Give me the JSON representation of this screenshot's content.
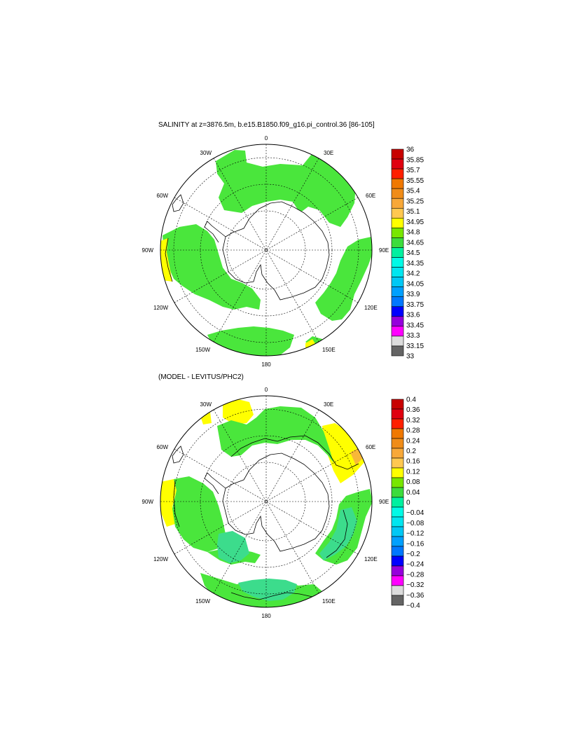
{
  "panels": [
    {
      "id": "salinity",
      "title": "SALINITY at z=3876.5m, b.e15.B1850.f09_g16.pi_control.36 [86-105]",
      "lon_labels": [
        "0",
        "30E",
        "60E",
        "90E",
        "120E",
        "150E",
        "180",
        "150W",
        "120W",
        "90W",
        "60W",
        "30W"
      ],
      "colorbar": {
        "labels": [
          "36",
          "35.85",
          "35.7",
          "35.55",
          "35.4",
          "35.25",
          "35.1",
          "34.95",
          "34.8",
          "34.65",
          "34.5",
          "34.35",
          "34.2",
          "34.05",
          "33.9",
          "33.75",
          "33.6",
          "33.45",
          "33.3",
          "33.15",
          "33"
        ],
        "colors": [
          "#c80000",
          "#e00010",
          "#ff2000",
          "#f07800",
          "#f08c18",
          "#f8a838",
          "#ffc850",
          "#ffff00",
          "#78e600",
          "#3cdc3c",
          "#00f0a0",
          "#00fae6",
          "#00e6f0",
          "#00c8f5",
          "#00a0ff",
          "#0078ff",
          "#0000ff",
          "#9600dc",
          "#ff00ff",
          "#dcdcdc",
          "#646464"
        ]
      }
    },
    {
      "id": "difference",
      "title": "(MODEL - LEVITUS/PHC2)",
      "lon_labels": [
        "0",
        "30E",
        "60E",
        "90E",
        "120E",
        "150E",
        "180",
        "150W",
        "120W",
        "90W",
        "60W",
        "30W"
      ],
      "colorbar": {
        "labels": [
          "0.4",
          "0.36",
          "0.32",
          "0.28",
          "0.24",
          "0.2",
          "0.16",
          "0.12",
          "0.08",
          "0.04",
          "0",
          "−0.04",
          "−0.08",
          "−0.12",
          "−0.16",
          "−0.2",
          "−0.24",
          "−0.28",
          "−0.32",
          "−0.36",
          "−0.4"
        ],
        "colors": [
          "#c80000",
          "#e00010",
          "#ff2000",
          "#f07800",
          "#f08c18",
          "#f8a838",
          "#ffc850",
          "#ffff00",
          "#78e600",
          "#3cdc3c",
          "#00f0a0",
          "#00fae6",
          "#00e6f0",
          "#00c8f5",
          "#00a0ff",
          "#0078ff",
          "#0000ff",
          "#9600dc",
          "#ff00ff",
          "#dcdcdc",
          "#646464"
        ]
      }
    }
  ],
  "field_colors": {
    "green": "#4ae63c",
    "yellow": "#ffff00",
    "mint": "#3cdc8c",
    "orange": "#f8b838"
  }
}
